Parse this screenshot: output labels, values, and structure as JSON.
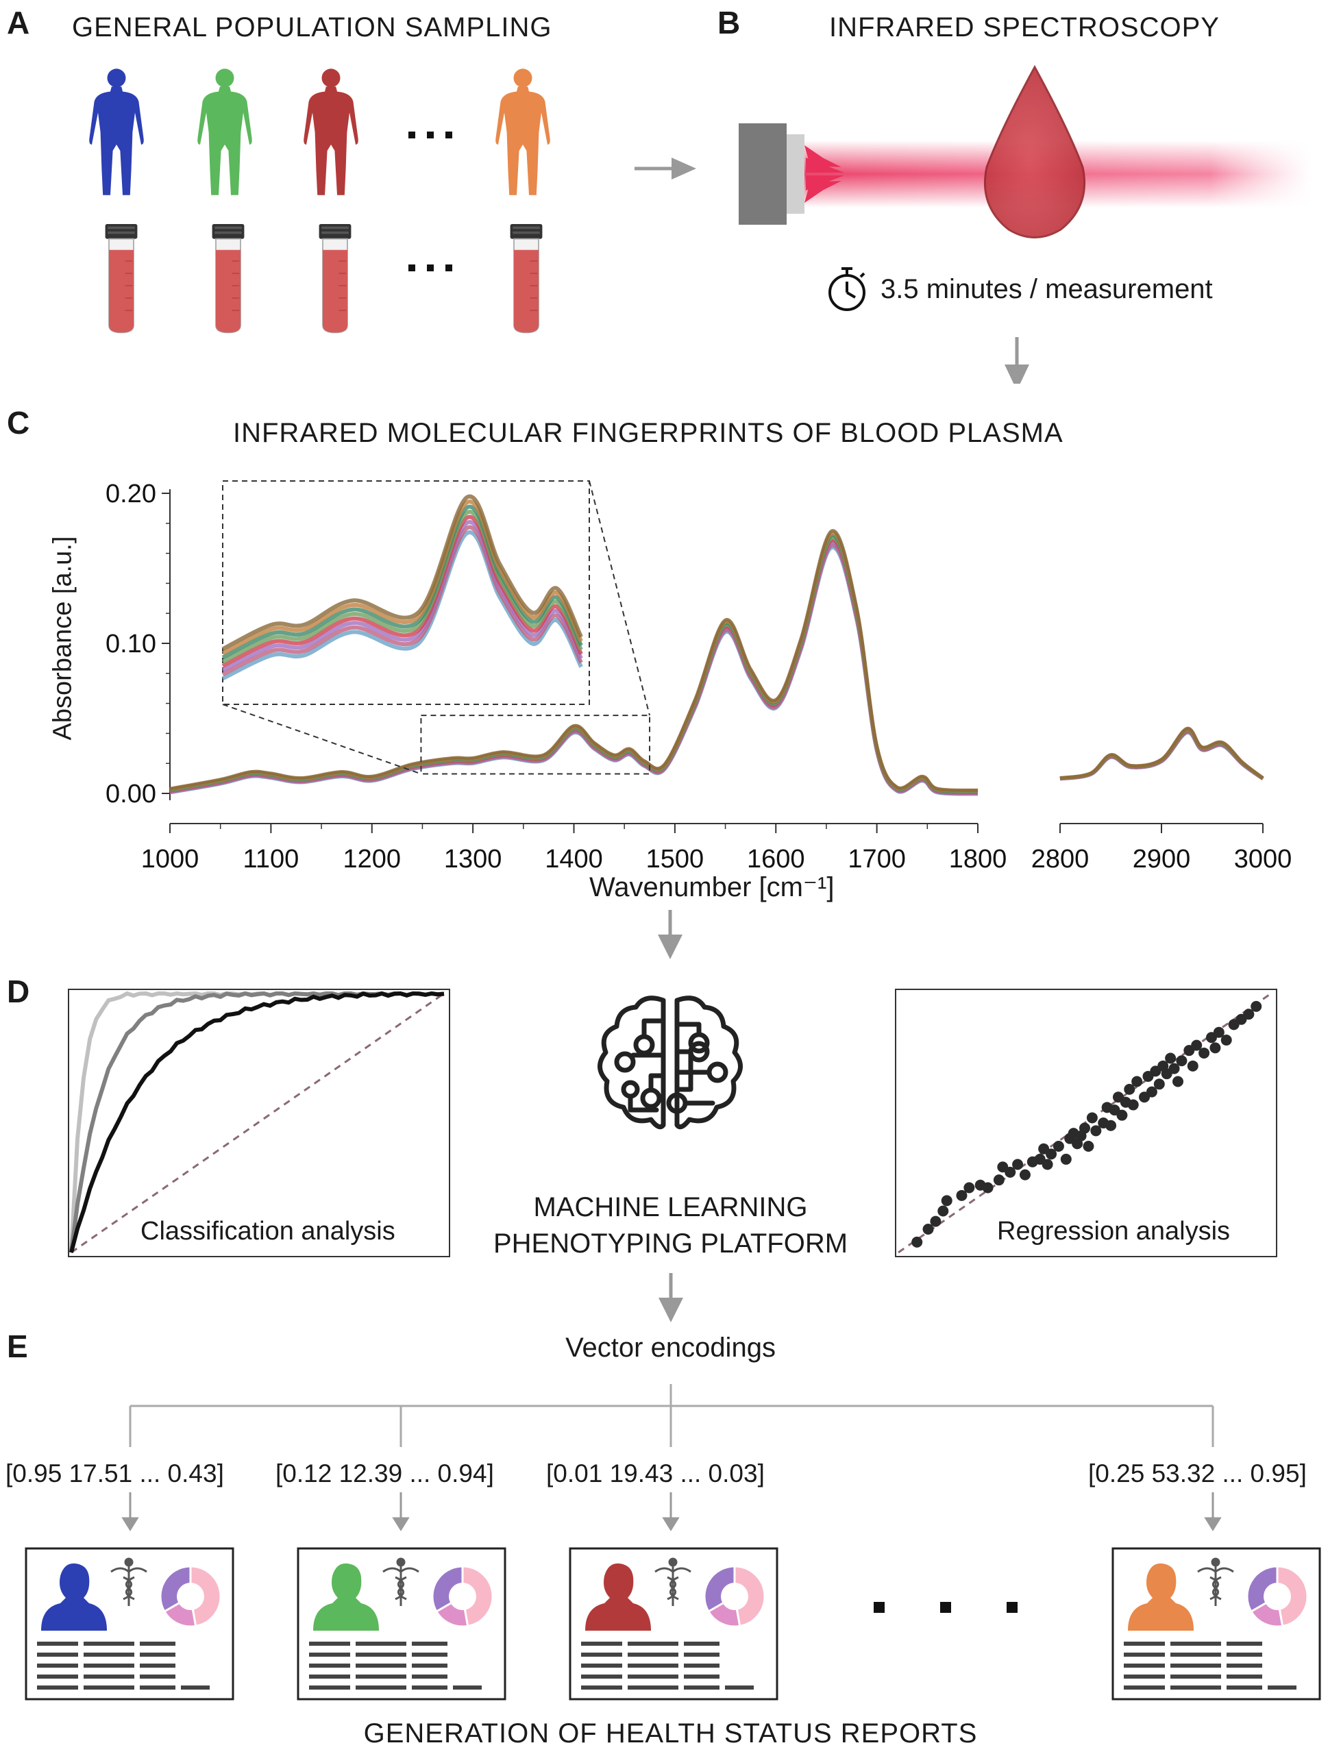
{
  "panels": {
    "A": {
      "letter": "A",
      "title": "GENERAL POPULATION SAMPLING",
      "figure_colors": [
        "#2c3fb3",
        "#5cb85c",
        "#b33a3a",
        "#e8884a"
      ],
      "ellipsis": "..."
    },
    "B": {
      "letter": "B",
      "title": "INFRARED SPECTROSCOPY",
      "timing": "3.5 minutes / measurement",
      "timer_icon": "stopwatch-icon"
    },
    "C": {
      "letter": "C",
      "title": "INFRARED MOLECULAR FINGERPRINTS OF BLOOD PLASMA",
      "chart_data": {
        "type": "line",
        "title": "INFRARED MOLECULAR FINGERPRINTS OF BLOOD PLASMA",
        "xlabel": "Wavenumber [cm⁻¹]",
        "ylabel": "Absorbance [a.u.]",
        "x_ticks_left": [
          "1000",
          "1100",
          "1200",
          "1300",
          "1400",
          "1500",
          "1600",
          "1700",
          "1800"
        ],
        "x_ticks_right": [
          "2800",
          "2900",
          "3000"
        ],
        "y_ticks": [
          "0.00",
          "0.10",
          "0.20"
        ],
        "xlim_left": [
          1000,
          1800
        ],
        "xlim_right": [
          2800,
          3000
        ],
        "ylim": [
          0,
          0.2
        ],
        "series_colors": [
          "#6aa3c8",
          "#c06080",
          "#a070c0",
          "#d04050",
          "#70a060",
          "#3f8a6a",
          "#c08040",
          "#8a6a3a"
        ],
        "spectrum": [
          {
            "x": 1000,
            "y": 0.002
          },
          {
            "x": 1050,
            "y": 0.008
          },
          {
            "x": 1080,
            "y": 0.013
          },
          {
            "x": 1100,
            "y": 0.012
          },
          {
            "x": 1130,
            "y": 0.009
          },
          {
            "x": 1170,
            "y": 0.013
          },
          {
            "x": 1200,
            "y": 0.01
          },
          {
            "x": 1240,
            "y": 0.018
          },
          {
            "x": 1280,
            "y": 0.022
          },
          {
            "x": 1300,
            "y": 0.022
          },
          {
            "x": 1330,
            "y": 0.026
          },
          {
            "x": 1370,
            "y": 0.024
          },
          {
            "x": 1400,
            "y": 0.043
          },
          {
            "x": 1420,
            "y": 0.032
          },
          {
            "x": 1440,
            "y": 0.024
          },
          {
            "x": 1455,
            "y": 0.028
          },
          {
            "x": 1470,
            "y": 0.02
          },
          {
            "x": 1490,
            "y": 0.018
          },
          {
            "x": 1520,
            "y": 0.06
          },
          {
            "x": 1550,
            "y": 0.112
          },
          {
            "x": 1575,
            "y": 0.08
          },
          {
            "x": 1600,
            "y": 0.06
          },
          {
            "x": 1625,
            "y": 0.1
          },
          {
            "x": 1655,
            "y": 0.17
          },
          {
            "x": 1680,
            "y": 0.12
          },
          {
            "x": 1700,
            "y": 0.03
          },
          {
            "x": 1720,
            "y": 0.003
          },
          {
            "x": 1745,
            "y": 0.01
          },
          {
            "x": 1760,
            "y": 0.002
          },
          {
            "x": 1800,
            "y": 0.001
          }
        ],
        "spectrum_right": [
          {
            "x": 2800,
            "y": 0.01
          },
          {
            "x": 2830,
            "y": 0.013
          },
          {
            "x": 2850,
            "y": 0.025
          },
          {
            "x": 2870,
            "y": 0.018
          },
          {
            "x": 2900,
            "y": 0.022
          },
          {
            "x": 2925,
            "y": 0.042
          },
          {
            "x": 2940,
            "y": 0.03
          },
          {
            "x": 2960,
            "y": 0.033
          },
          {
            "x": 2980,
            "y": 0.02
          },
          {
            "x": 3000,
            "y": 0.01
          }
        ],
        "inset_range": [
          1250,
          1475
        ]
      }
    },
    "D": {
      "letter": "D",
      "center_line1": "MACHINE LEARNING",
      "center_line2": "PHENOTYPING PLATFORM",
      "classification_label": "Classification analysis",
      "regression_label": "Regression analysis",
      "roc_colors": [
        "#c0c0c0",
        "#808080",
        "#111111"
      ],
      "regression_points": [
        [
          0.05,
          0.04
        ],
        [
          0.08,
          0.09
        ],
        [
          0.1,
          0.12
        ],
        [
          0.12,
          0.16
        ],
        [
          0.13,
          0.2
        ],
        [
          0.17,
          0.22
        ],
        [
          0.19,
          0.25
        ],
        [
          0.22,
          0.26
        ],
        [
          0.24,
          0.25
        ],
        [
          0.27,
          0.28
        ],
        [
          0.28,
          0.33
        ],
        [
          0.3,
          0.31
        ],
        [
          0.32,
          0.34
        ],
        [
          0.34,
          0.3
        ],
        [
          0.36,
          0.35
        ],
        [
          0.38,
          0.36
        ],
        [
          0.39,
          0.4
        ],
        [
          0.4,
          0.34
        ],
        [
          0.41,
          0.38
        ],
        [
          0.43,
          0.41
        ],
        [
          0.45,
          0.36
        ],
        [
          0.46,
          0.44
        ],
        [
          0.47,
          0.46
        ],
        [
          0.48,
          0.42
        ],
        [
          0.49,
          0.45
        ],
        [
          0.5,
          0.48
        ],
        [
          0.51,
          0.41
        ],
        [
          0.52,
          0.52
        ],
        [
          0.53,
          0.47
        ],
        [
          0.55,
          0.5
        ],
        [
          0.56,
          0.56
        ],
        [
          0.57,
          0.49
        ],
        [
          0.58,
          0.55
        ],
        [
          0.59,
          0.6
        ],
        [
          0.6,
          0.53
        ],
        [
          0.61,
          0.58
        ],
        [
          0.62,
          0.63
        ],
        [
          0.63,
          0.57
        ],
        [
          0.64,
          0.66
        ],
        [
          0.66,
          0.6
        ],
        [
          0.67,
          0.68
        ],
        [
          0.68,
          0.62
        ],
        [
          0.69,
          0.7
        ],
        [
          0.7,
          0.65
        ],
        [
          0.71,
          0.72
        ],
        [
          0.72,
          0.69
        ],
        [
          0.73,
          0.75
        ],
        [
          0.74,
          0.71
        ],
        [
          0.75,
          0.66
        ],
        [
          0.76,
          0.74
        ],
        [
          0.78,
          0.78
        ],
        [
          0.79,
          0.72
        ],
        [
          0.8,
          0.8
        ],
        [
          0.82,
          0.77
        ],
        [
          0.84,
          0.83
        ],
        [
          0.85,
          0.79
        ],
        [
          0.86,
          0.85
        ],
        [
          0.88,
          0.82
        ],
        [
          0.9,
          0.88
        ],
        [
          0.92,
          0.9
        ],
        [
          0.94,
          0.92
        ],
        [
          0.96,
          0.95
        ]
      ]
    },
    "E": {
      "letter": "E",
      "vector_title": "Vector encodings",
      "vectors": [
        {
          "text": "[0.95 17.51 ... 0.43]",
          "color": "#2c3fb3"
        },
        {
          "text": "[0.12 12.39 ... 0.94]",
          "color": "#5cb85c"
        },
        {
          "text": "[0.01 19.43 ... 0.03]",
          "color": "#b33a3a"
        },
        {
          "text": "[0.25 53.32 ... 0.95]",
          "color": "#e8884a"
        }
      ],
      "footer": "GENERATION OF HEALTH STATUS REPORTS",
      "report_icons": [
        "person-bust-icon",
        "caduceus-icon",
        "donut-chart-icon"
      ]
    }
  }
}
